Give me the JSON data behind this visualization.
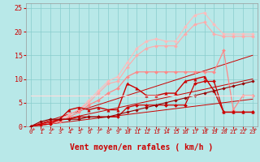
{
  "background_color": "#b8e8e8",
  "grid_color": "#88cccc",
  "xlabel": "Vent moyen/en rafales ( km/h )",
  "xlabel_color": "#cc0000",
  "xlabel_fontsize": 7,
  "xlim": [
    -0.5,
    23.5
  ],
  "ylim": [
    0,
    26
  ],
  "xticks": [
    0,
    1,
    2,
    3,
    4,
    5,
    6,
    7,
    8,
    9,
    10,
    11,
    12,
    13,
    14,
    15,
    16,
    17,
    18,
    19,
    20,
    21,
    22,
    23
  ],
  "yticks": [
    0,
    5,
    10,
    15,
    20,
    25
  ],
  "lines": [
    {
      "x": [
        0,
        23
      ],
      "y": [
        0,
        5.75
      ],
      "color": "#cc0000",
      "lw": 0.7,
      "ls": "-",
      "marker": null
    },
    {
      "x": [
        0,
        23
      ],
      "y": [
        0,
        10
      ],
      "color": "#cc0000",
      "lw": 0.7,
      "ls": "-",
      "marker": null
    },
    {
      "x": [
        0,
        23
      ],
      "y": [
        0,
        15
      ],
      "color": "#cc0000",
      "lw": 0.7,
      "ls": "-",
      "marker": null
    },
    {
      "x": [
        0,
        1,
        2,
        3,
        4,
        5,
        6,
        7,
        8,
        9,
        10,
        11,
        12,
        13,
        14,
        15,
        16,
        17,
        18,
        19,
        20,
        21,
        22,
        23
      ],
      "y": [
        0,
        0.5,
        1.0,
        1.5,
        2.5,
        3.5,
        5.5,
        7.5,
        9.5,
        10.5,
        13.5,
        16.5,
        18.0,
        18.5,
        18.0,
        18.0,
        21.0,
        23.5,
        24.0,
        21.5,
        19.5,
        19.5,
        19.5,
        19.5
      ],
      "color": "#ffbbbb",
      "lw": 0.8,
      "ls": "-",
      "marker": "D",
      "markersize": 2.0
    },
    {
      "x": [
        0,
        1,
        2,
        3,
        4,
        5,
        6,
        7,
        8,
        9,
        10,
        11,
        12,
        13,
        14,
        15,
        16,
        17,
        18,
        19,
        20,
        21,
        22,
        23
      ],
      "y": [
        0,
        0.5,
        1.0,
        1.5,
        2.5,
        3.5,
        5.0,
        7.0,
        9.0,
        9.5,
        12.5,
        15.0,
        16.5,
        17.0,
        17.0,
        17.0,
        19.5,
        21.5,
        22.0,
        19.5,
        19.0,
        19.0,
        19.0,
        19.0
      ],
      "color": "#ffaaaa",
      "lw": 0.8,
      "ls": "-",
      "marker": "D",
      "markersize": 2.0
    },
    {
      "x": [
        0,
        1,
        2,
        3,
        4,
        5,
        6,
        7,
        8,
        9,
        10,
        11,
        12,
        13,
        14,
        15,
        16,
        17,
        18,
        19,
        20,
        21,
        22,
        23
      ],
      "y": [
        0,
        0.3,
        0.5,
        1.0,
        2.0,
        3.0,
        4.5,
        5.5,
        7.0,
        8.0,
        10.5,
        11.5,
        11.5,
        11.5,
        11.5,
        11.5,
        11.5,
        11.5,
        11.5,
        11.5,
        16.0,
        3.5,
        6.5,
        6.5
      ],
      "color": "#ff8888",
      "lw": 0.9,
      "ls": "-",
      "marker": "D",
      "markersize": 2.0
    },
    {
      "x": [
        0,
        1,
        2,
        3,
        4,
        5,
        6,
        7,
        8,
        9,
        10,
        11,
        12,
        13,
        14,
        15,
        16,
        17,
        18,
        19,
        20,
        21,
        22,
        23
      ],
      "y": [
        0,
        0.5,
        1.0,
        1.5,
        3.5,
        4.0,
        3.5,
        4.0,
        3.5,
        3.5,
        9.0,
        8.0,
        6.5,
        6.5,
        7.0,
        7.0,
        9.5,
        10.0,
        10.5,
        7.5,
        3.0,
        3.0,
        3.0,
        3.0
      ],
      "color": "#cc0000",
      "lw": 1.0,
      "ls": "-",
      "marker": "^",
      "markersize": 2.5
    },
    {
      "x": [
        0,
        1,
        2,
        3,
        4,
        5,
        6,
        7,
        8,
        9,
        10,
        11,
        12,
        13,
        14,
        15,
        16,
        17,
        18,
        19,
        20,
        21,
        22,
        23
      ],
      "y": [
        0,
        0.3,
        0.5,
        1.5,
        1.5,
        2.0,
        2.0,
        2.0,
        2.0,
        2.0,
        4.0,
        4.5,
        4.5,
        4.5,
        4.5,
        4.5,
        4.5,
        9.0,
        9.5,
        9.5,
        3.0,
        3.0,
        3.0,
        3.0
      ],
      "color": "#cc0000",
      "lw": 0.9,
      "ls": "-",
      "marker": "D",
      "markersize": 2.0
    },
    {
      "x": [
        0,
        1,
        2,
        3,
        4,
        5,
        6,
        7,
        8,
        9,
        10,
        11,
        12,
        13,
        14,
        15,
        16,
        17,
        18,
        19,
        20,
        21,
        22,
        23
      ],
      "y": [
        0,
        1.0,
        1.5,
        1.5,
        1.5,
        1.5,
        2.0,
        2.0,
        2.0,
        2.5,
        3.0,
        3.5,
        4.0,
        4.5,
        5.0,
        5.5,
        6.0,
        6.5,
        7.0,
        7.5,
        8.0,
        8.5,
        9.0,
        9.5
      ],
      "color": "#990000",
      "lw": 0.8,
      "ls": "-",
      "marker": "D",
      "markersize": 1.8
    },
    {
      "x": [
        0,
        23
      ],
      "y": [
        6.5,
        6.5
      ],
      "color": "#ffdddd",
      "lw": 0.8,
      "ls": "-",
      "marker": null
    }
  ]
}
